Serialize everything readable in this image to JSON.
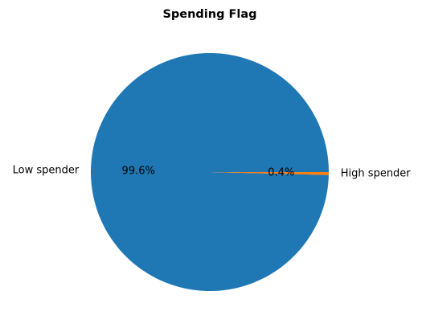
{
  "chart_data": {
    "type": "pie",
    "title": "Spending Flag",
    "categories": [
      "Low spender",
      "High spender"
    ],
    "values": [
      99.6,
      0.4
    ],
    "percent_labels": [
      "99.6%",
      "0.4%"
    ],
    "colors": [
      "#1f77b4",
      "#ff7f0e"
    ],
    "legend": "none"
  }
}
